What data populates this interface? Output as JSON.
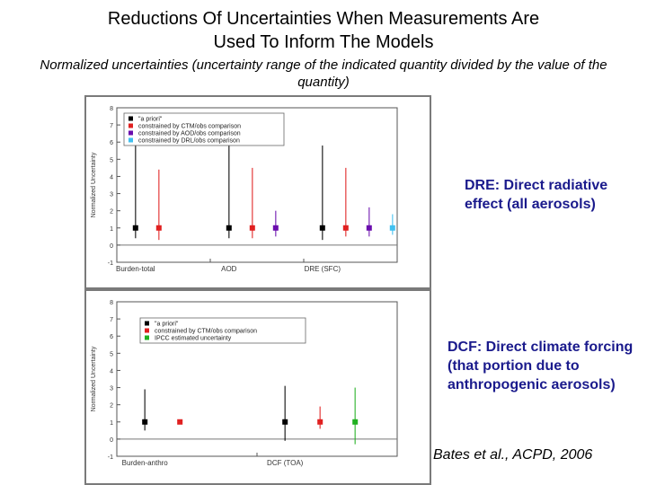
{
  "header": {
    "title_line1": "Reductions Of Uncertainties When Measurements Are",
    "title_line2": "Used To Inform The Models",
    "subtitle": "Normalized uncertainties (uncertainty range of the indicated quantity divided by the value of the quantity)"
  },
  "notes": {
    "dre": "DRE: Direct radiative effect (all aerosols)",
    "dcf": "DCF: Direct climate forcing (that portion due to anthropogenic aerosols)",
    "citation": "Bates et al., ACPD,  2006"
  },
  "colors": {
    "a_priori": "#000000",
    "ctm": "#e02020",
    "aod": "#6a0dad",
    "drl": "#40c0f0",
    "ipcc": "#20b020",
    "note_text": "#1a1a8c"
  },
  "chart_data": [
    {
      "type": "scatter",
      "ylabel": "Normalized Uncertainty",
      "ylim": [
        -1,
        8
      ],
      "yticks": [
        "-1",
        "0",
        "1",
        "2",
        "3",
        "4",
        "5",
        "6",
        "7",
        "8"
      ],
      "categories": [
        "Burden-total",
        "AOD",
        "DRE (SFC)"
      ],
      "legend_position": "top-left",
      "legend": [
        {
          "label": "\"a priori\"",
          "color": "#000000"
        },
        {
          "label": "constrained by CTM/obs comparison",
          "color": "#e02020"
        },
        {
          "label": "constrained by AOD/obs comparison",
          "color": "#6a0dad"
        },
        {
          "label": "constrained by DRL/obs comparison",
          "color": "#40c0f0"
        }
      ],
      "series": [
        {
          "name": "\"a priori\"",
          "color": "#000000",
          "points": [
            {
              "x": 0.2,
              "y": 1,
              "low": 0.4,
              "high": 6.4
            },
            {
              "x": 1.2,
              "y": 1,
              "low": 0.4,
              "high": 6.4
            },
            {
              "x": 2.2,
              "y": 1,
              "low": 0.3,
              "high": 5.8
            }
          ]
        },
        {
          "name": "constrained by CTM/obs comparison",
          "color": "#e02020",
          "points": [
            {
              "x": 0.45,
              "y": 1,
              "low": 0.3,
              "high": 4.4
            },
            {
              "x": 1.45,
              "y": 1,
              "low": 0.4,
              "high": 4.5
            },
            {
              "x": 2.45,
              "y": 1,
              "low": 0.5,
              "high": 4.5
            }
          ]
        },
        {
          "name": "constrained by AOD/obs comparison",
          "color": "#6a0dad",
          "points": [
            {
              "x": 1.7,
              "y": 1,
              "low": 0.5,
              "high": 2.0
            },
            {
              "x": 2.7,
              "y": 1,
              "low": 0.5,
              "high": 2.2
            }
          ]
        },
        {
          "name": "constrained by DRL/obs comparison",
          "color": "#40c0f0",
          "points": [
            {
              "x": 2.95,
              "y": 1,
              "low": 0.6,
              "high": 1.8
            }
          ]
        }
      ]
    },
    {
      "type": "scatter",
      "ylabel": "Normalized Uncertainty",
      "ylim": [
        -1,
        8
      ],
      "yticks": [
        "-1",
        "0",
        "1",
        "2",
        "3",
        "4",
        "5",
        "6",
        "7",
        "8"
      ],
      "categories": [
        "Burden-anthro",
        "DCF (TOA)"
      ],
      "legend_position": "top-left",
      "legend": [
        {
          "label": "\"a priori\"",
          "color": "#000000"
        },
        {
          "label": "constrained by CTM/obs comparison",
          "color": "#e02020"
        },
        {
          "label": "IPCC estimated uncertainty",
          "color": "#20b020"
        }
      ],
      "series": [
        {
          "name": "\"a priori\"",
          "color": "#000000",
          "points": [
            {
              "x": 0.2,
              "y": 1,
              "low": 0.5,
              "high": 2.9
            },
            {
              "x": 1.2,
              "y": 1,
              "low": -0.1,
              "high": 3.1
            }
          ]
        },
        {
          "name": "constrained by CTM/obs comparison",
          "color": "#e02020",
          "points": [
            {
              "x": 0.45,
              "y": 1
            },
            {
              "x": 1.45,
              "y": 1,
              "low": 0.6,
              "high": 1.9
            }
          ]
        },
        {
          "name": "IPCC estimated uncertainty",
          "color": "#20b020",
          "points": [
            {
              "x": 1.7,
              "y": 1,
              "low": -0.3,
              "high": 3.0
            }
          ]
        }
      ]
    }
  ]
}
